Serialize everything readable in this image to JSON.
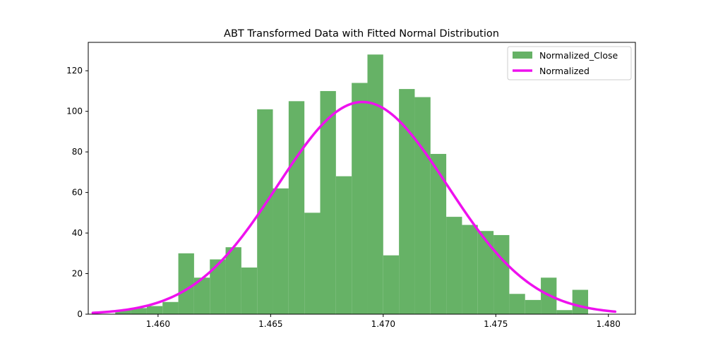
{
  "chart_data": {
    "type": "bar",
    "title": "ABT Transformed Data with Fitted Normal Distribution",
    "xlabel": "",
    "ylabel": "",
    "xlim": [
      1.4569,
      1.4812
    ],
    "ylim": [
      0,
      134
    ],
    "x_ticks": [
      1.46,
      1.465,
      1.47,
      1.475,
      1.48
    ],
    "x_tick_labels": [
      "1.460",
      "1.465",
      "1.470",
      "1.475",
      "1.480"
    ],
    "y_ticks": [
      0,
      20,
      40,
      60,
      80,
      100,
      120
    ],
    "y_tick_labels": [
      "0",
      "20",
      "40",
      "60",
      "80",
      "100",
      "120"
    ],
    "grid": false,
    "legend_position": "top-right",
    "histogram": {
      "name": "Normalized_Close",
      "color": "#66b266",
      "bin_start": 1.4581,
      "bin_width": 0.0007,
      "counts": [
        2,
        3,
        4,
        6,
        30,
        18,
        27,
        33,
        23,
        101,
        62,
        105,
        50,
        110,
        68,
        114,
        128,
        29,
        111,
        107,
        79,
        48,
        44,
        41,
        39,
        10,
        7,
        18,
        2,
        12
      ]
    },
    "fitted_curve": {
      "name": "Normalized",
      "color": "#ee11ee",
      "mean": 1.46908,
      "std": 0.00377,
      "peak": 104.6,
      "x_range": [
        1.4571,
        1.4803
      ]
    }
  }
}
